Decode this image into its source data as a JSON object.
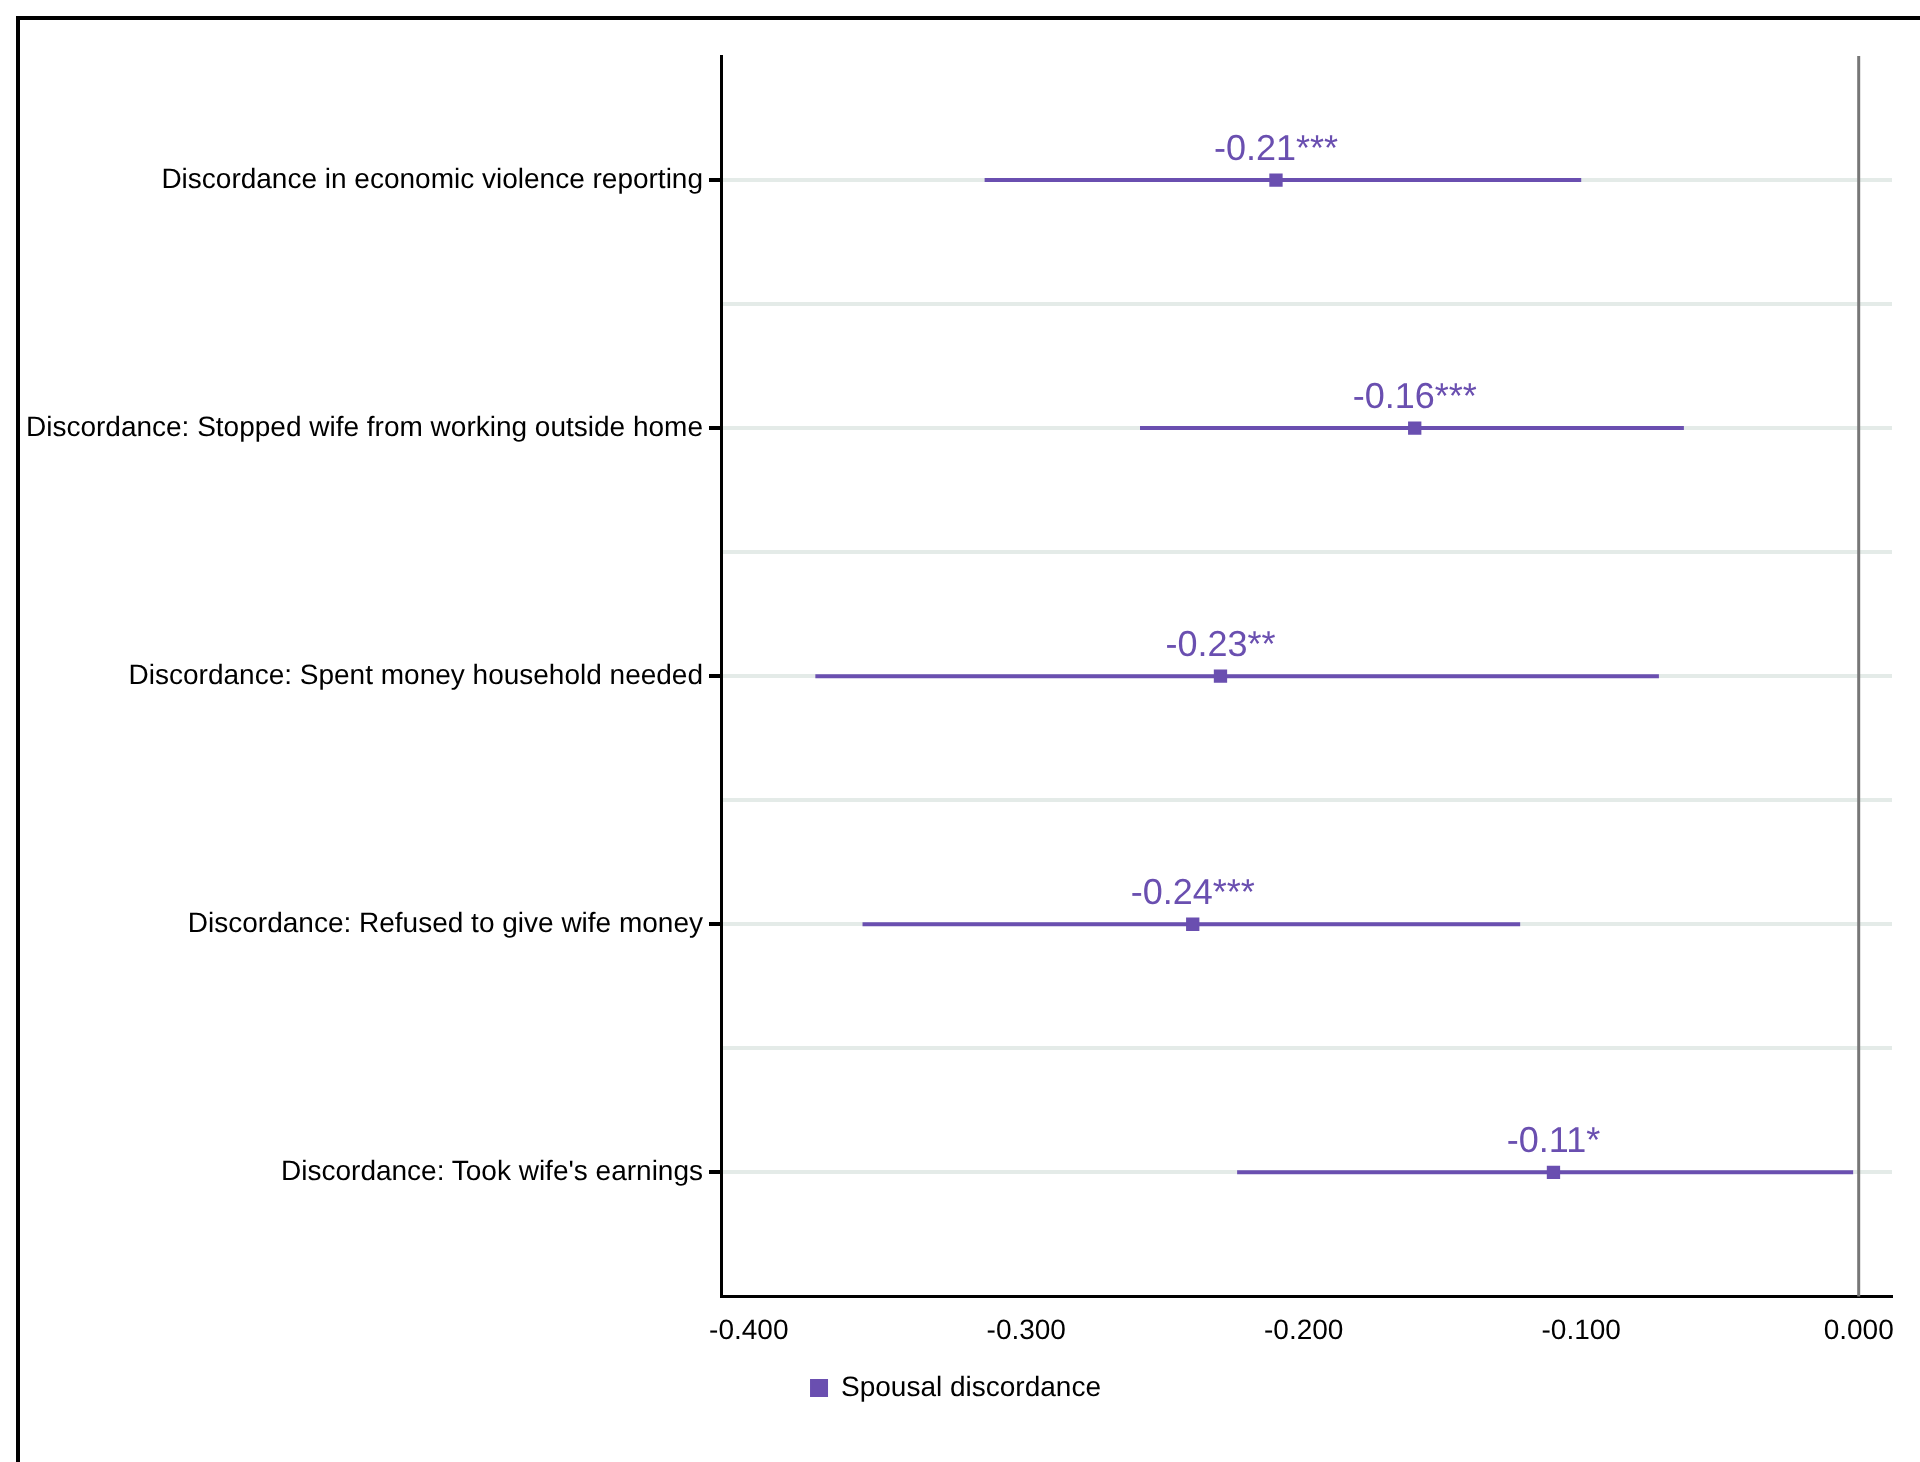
{
  "chart_data": {
    "type": "scatter",
    "categories": [
      "Discordance in economic violence reporting",
      "Discordance: Stopped wife from working outside home",
      "Discordance: Spent money household needed",
      "Discordance: Refused to give wife money",
      "Discordance: Took wife's earnings"
    ],
    "orientation": "horizontal",
    "series": [
      {
        "name": "Spousal discordance",
        "color": "#6a4fb0",
        "values": [
          -0.21,
          -0.16,
          -0.23,
          -0.24,
          -0.11
        ],
        "errors": [
          [
            -0.315,
            -0.1
          ],
          [
            -0.259,
            -0.063
          ],
          [
            -0.376,
            -0.072
          ],
          [
            -0.359,
            -0.122
          ],
          [
            -0.224,
            -0.002
          ]
        ],
        "value_labels": [
          "-0.21***",
          "-0.16***",
          "-0.23**",
          "-0.24***",
          "-0.11*"
        ]
      }
    ],
    "xlim": [
      -0.41,
      0.012
    ],
    "xticks": [
      {
        "value": -0.4,
        "label": "-0.400"
      },
      {
        "value": -0.3,
        "label": "-0.300"
      },
      {
        "value": -0.2,
        "label": "-0.200"
      },
      {
        "value": -0.1,
        "label": "-0.100"
      },
      {
        "value": 0,
        "label": "0.000"
      }
    ],
    "ref_lines": [
      {
        "axis": "x",
        "value": 0,
        "color": "#777777"
      }
    ],
    "grid": "y",
    "legend": "bottom",
    "marker": "square"
  }
}
